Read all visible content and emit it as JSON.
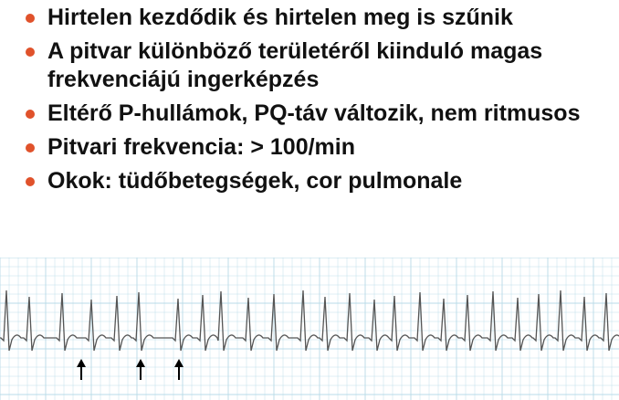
{
  "slide": {
    "bullet_color": "#e0522b",
    "bullets": [
      "Hirtelen kezdődik és hirtelen meg is szűnik",
      "A pitvar különböző területéről kiinduló magas frekvenciájú ingerképzés",
      "Eltérő P-hullámok, PQ-táv változik, nem ritmusos",
      "Pitvari frekvencia: > 100/min",
      "Okok: tüdőbetegségek, cor pulmonale"
    ]
  },
  "ecg": {
    "grid_color": "#b9dbe8",
    "trace_color": "#555555",
    "marker_count": 3
  }
}
